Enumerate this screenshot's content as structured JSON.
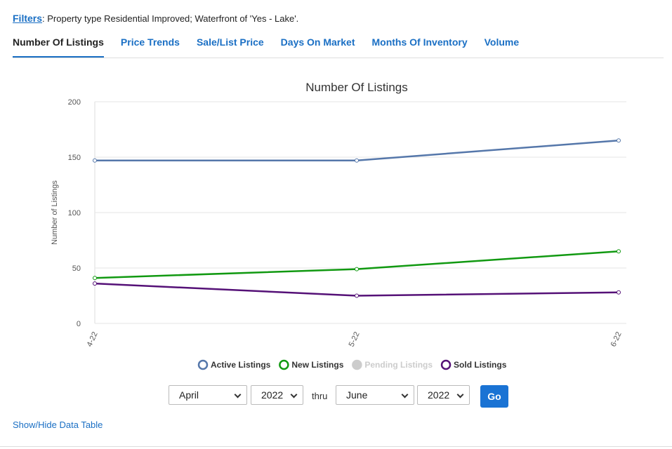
{
  "filters": {
    "link": "Filters",
    "text": ": Property type Residential Improved; Waterfront of 'Yes - Lake'."
  },
  "tabs": [
    "Number Of Listings",
    "Price Trends",
    "Sale/List Price",
    "Days On Market",
    "Months Of Inventory",
    "Volume"
  ],
  "chart_data": {
    "type": "line",
    "title": "Number Of Listings",
    "y_label": "Number of Listings",
    "categories": [
      "4-22",
      "5-22",
      "6-22"
    ],
    "series": [
      {
        "name": "Active Listings",
        "color": "#5577aa",
        "values": [
          147,
          147,
          165
        ]
      },
      {
        "name": "New Listings",
        "color": "#119911",
        "values": [
          41,
          49,
          65
        ]
      },
      {
        "name": "Pending Listings",
        "color": "#cccccc",
        "values": [
          null,
          null,
          null
        ],
        "hidden": true
      },
      {
        "name": "Sold Listings",
        "color": "#551177",
        "values": [
          36,
          25,
          28
        ]
      }
    ],
    "ylim": [
      0,
      200
    ],
    "yticks": [
      0,
      50,
      100,
      150,
      200
    ],
    "grid": true,
    "legend": "bottom"
  },
  "controls": {
    "from_month": "April",
    "from_year": "2022",
    "thru": "thru",
    "to_month": "June",
    "to_year": "2022",
    "go": "Go"
  },
  "data_table_link": "Show/Hide Data Table"
}
